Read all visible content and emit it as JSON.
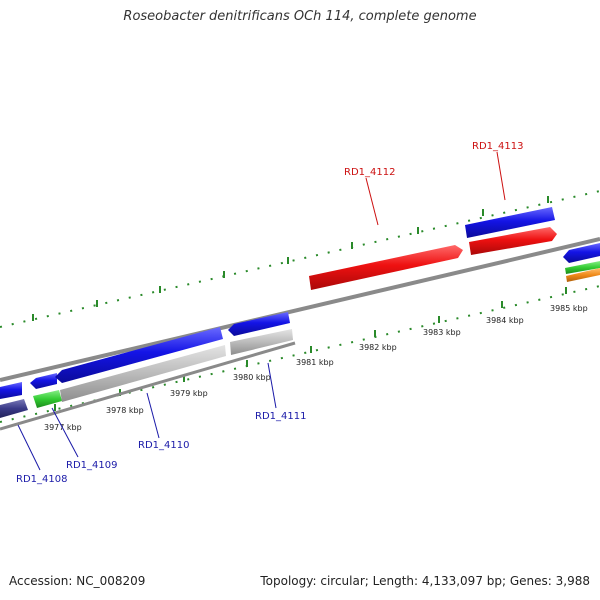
{
  "title": "Roseobacter denitrificans OCh 114, complete genome",
  "footer": {
    "accession": "Accession: NC_008209",
    "summary": "Topology: circular; Length: 4,133,097 bp; Genes: 3,988"
  },
  "ruler_labels": [
    "3977 kbp",
    "3978 kbp",
    "3979 kbp",
    "3980 kbp",
    "3981 kbp",
    "3982 kbp",
    "3983 kbp",
    "3984 kbp",
    "3985 kbp"
  ],
  "genes": [
    {
      "label": "RD1_4108",
      "strand": "reverse"
    },
    {
      "label": "RD1_4109",
      "strand": "reverse"
    },
    {
      "label": "RD1_4110",
      "strand": "reverse"
    },
    {
      "label": "RD1_4111",
      "strand": "reverse"
    },
    {
      "label": "RD1_4112",
      "strand": "forward"
    },
    {
      "label": "RD1_4113",
      "strand": "forward"
    }
  ],
  "colors": {
    "cds_blue": "#1414e6",
    "highlight_red": "#ee1111",
    "rna_green": "#33cc33",
    "pseudo_gray": "#bbbbbb",
    "dark_purple": "#3a3a88",
    "orange": "#f08a1a",
    "tick_green": "#2a8a2a",
    "backbone_gray": "#888888",
    "label_blue": "#1a1aa8",
    "label_red": "#cc1111"
  }
}
